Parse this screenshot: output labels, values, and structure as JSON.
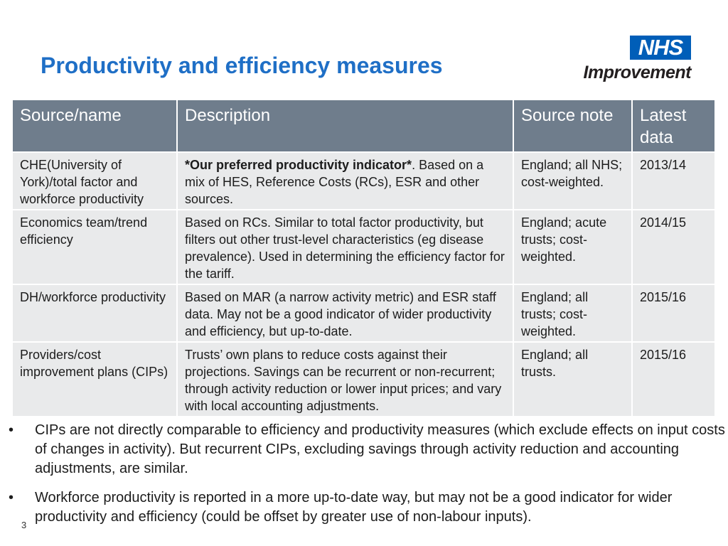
{
  "slide": {
    "title": "Productivity and efficiency measures",
    "page_number": "3"
  },
  "logo": {
    "mark": "NHS",
    "name": "Improvement"
  },
  "colors": {
    "title": "#1f6fc6",
    "header_bg": "#6f7d8c",
    "row_bg": "#e9eaeb",
    "nhs_blue": "#005eb8"
  },
  "table": {
    "headers": [
      "Source/name",
      "Description",
      "Source note",
      "Latest data"
    ],
    "rows": [
      {
        "source": "CHE(University of York)/total factor and workforce productivity",
        "description_bold": "*Our preferred productivity indicator*",
        "description": ". Based on a mix of HES, Reference Costs (RCs), ESR and other sources.",
        "note": "England; all NHS; cost-weighted.",
        "latest": "2013/14"
      },
      {
        "source": "Economics team/trend efficiency",
        "description_bold": "",
        "description": "Based on RCs. Similar to total factor productivity, but filters out other trust-level characteristics (eg disease prevalence). Used in determining the efficiency factor for the tariff.",
        "note": "England; acute trusts; cost-weighted.",
        "latest": "2014/15"
      },
      {
        "source": "DH/workforce productivity",
        "description_bold": "",
        "description": "Based on MAR (a narrow activity metric) and ESR staff data. May not be a good indicator of wider productivity and efficiency, but up-to-date.",
        "note": "England; all trusts; cost-weighted.",
        "latest": "2015/16"
      },
      {
        "source": "Providers/cost improvement plans (CIPs)",
        "description_bold": "",
        "description": "Trusts’ own plans to reduce costs against their projections. Savings can be recurrent or non-recurrent; through activity reduction or lower input prices; and vary with local accounting adjustments.",
        "note": "England; all trusts.",
        "latest": "2015/16"
      }
    ]
  },
  "bullets": [
    {
      "mark": "•",
      "text": "CIPs are not directly comparable to efficiency and productivity measures (which exclude effects on input costs of changes in activity). But recurrent CIPs, excluding savings through activity reduction and accounting adjustments, are similar."
    },
    {
      "mark": "•",
      "text": "Workforce productivity is reported in a more up-to-date way, but may not be a good indicator for wider productivity and efficiency (could be offset by greater use of non-labour inputs)."
    }
  ]
}
